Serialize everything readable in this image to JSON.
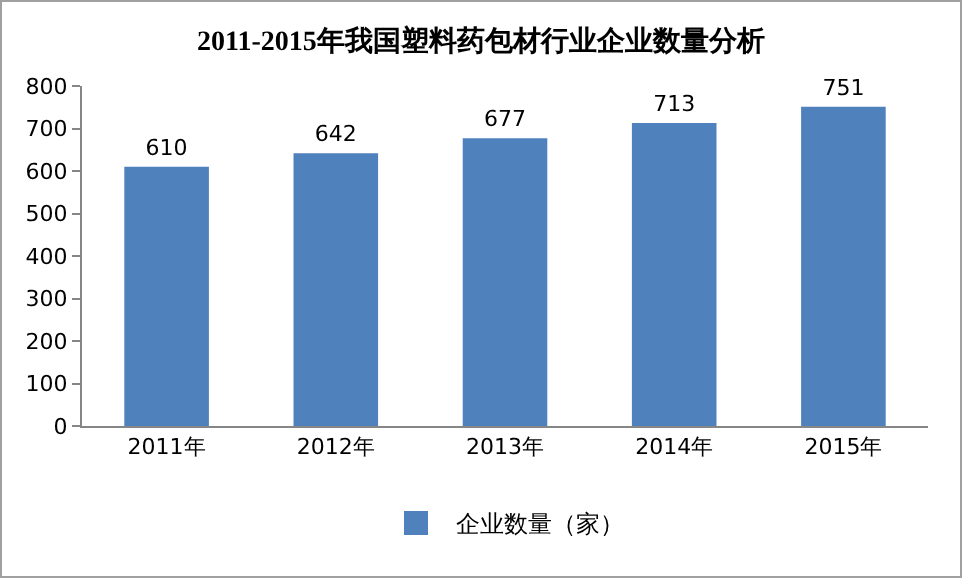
{
  "chart_data": {
    "type": "bar",
    "title": "2011-2015年我国塑料药包材行业企业数量分析",
    "categories": [
      "2011年",
      "2012年",
      "2013年",
      "2014年",
      "2015年"
    ],
    "series": [
      {
        "name": "企业数量（家）",
        "color": "#4f81bd",
        "values": [
          610,
          642,
          677,
          713,
          751
        ]
      }
    ],
    "ylim": [
      0,
      800
    ],
    "yticks": [
      0,
      100,
      200,
      300,
      400,
      500,
      600,
      700,
      800
    ],
    "grid": false,
    "legend": "bottom",
    "data_labels": true
  }
}
